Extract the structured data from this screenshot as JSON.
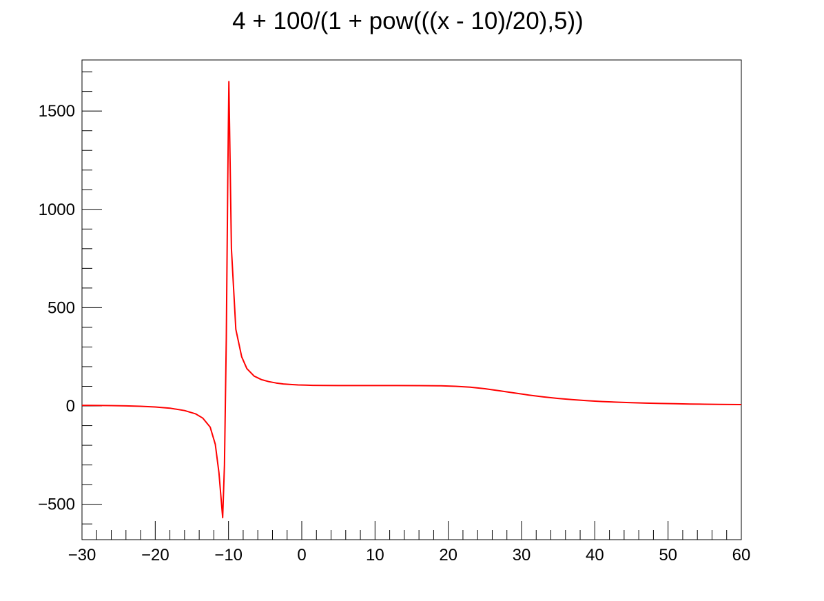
{
  "chart_data": {
    "type": "line",
    "title": "4 + 100/(1 + pow(((x - 10)/20),5))",
    "xlabel": "",
    "ylabel": "",
    "xlim": [
      -30,
      60
    ],
    "ylim": [
      -680,
      1760
    ],
    "grid": false,
    "x_ticks": [
      {
        "value": -30,
        "label": "−30"
      },
      {
        "value": -20,
        "label": "−20"
      },
      {
        "value": -10,
        "label": "−10"
      },
      {
        "value": 0,
        "label": "0"
      },
      {
        "value": 10,
        "label": "10"
      },
      {
        "value": 20,
        "label": "20"
      },
      {
        "value": 30,
        "label": "30"
      },
      {
        "value": 40,
        "label": "40"
      },
      {
        "value": 50,
        "label": "50"
      },
      {
        "value": 60,
        "label": "60"
      }
    ],
    "y_ticks": [
      {
        "value": -500,
        "label": "−500"
      },
      {
        "value": 0,
        "label": "0"
      },
      {
        "value": 500,
        "label": "500"
      },
      {
        "value": 1000,
        "label": "1000"
      },
      {
        "value": 1500,
        "label": "1500"
      }
    ],
    "series": [
      {
        "color": "#ff0000",
        "x": [
          -30,
          -28,
          -26,
          -24,
          -22,
          -20,
          -18,
          -16,
          -14.5,
          -13.5,
          -12.5,
          -11.8,
          -11.3,
          -10.8,
          -10.55,
          -10.3,
          -10.1,
          -9.95,
          -9.6,
          -9.0,
          -8.2,
          -7.5,
          -6.5,
          -5.5,
          -4.5,
          -3.5,
          -2.5,
          -1.5,
          -0.5,
          0.5,
          1.5,
          3,
          5,
          7,
          10,
          13,
          16,
          19,
          21,
          23,
          25,
          27,
          29,
          31,
          33,
          35,
          37,
          39,
          41,
          43,
          45,
          47,
          49,
          51,
          53,
          55,
          57,
          60
        ],
        "y": [
          3.2,
          2.6,
          1.8,
          0.4,
          -1.6,
          -5.0,
          -11.0,
          -23.4,
          -40.0,
          -62.0,
          -108.0,
          -195.0,
          -340.0,
          -568.0,
          -300.0,
          350.0,
          1150.0,
          1650.0,
          800.0,
          390.0,
          250.0,
          190.0,
          152.0,
          134.0,
          124.0,
          117.0,
          112.0,
          109.0,
          107.0,
          106.0,
          105.0,
          104.5,
          104.0,
          104.0,
          104.0,
          104.0,
          103.7,
          102.4,
          100.1,
          95.3,
          87.6,
          77.4,
          66.2,
          55.5,
          46.1,
          38.3,
          31.9,
          26.8,
          22.6,
          19.3,
          16.6,
          14.4,
          12.7,
          11.2,
          10.0,
          9.0,
          8.2,
          7.0
        ]
      }
    ]
  }
}
